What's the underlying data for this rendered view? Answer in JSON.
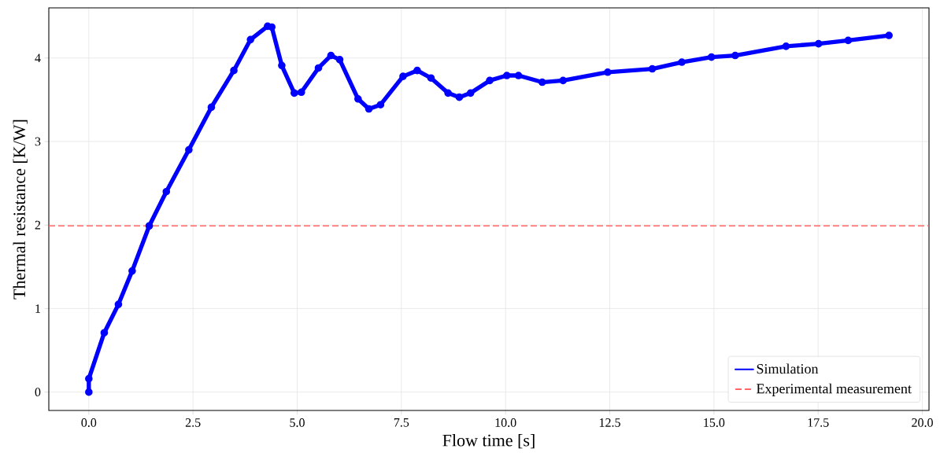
{
  "chart_data": {
    "type": "line",
    "xlabel": "Flow time [s]",
    "ylabel": "Thermal resistance [K/W]",
    "xlim": [
      -0.96,
      20.16
    ],
    "ylim": [
      -0.22,
      4.6
    ],
    "xticks": [
      {
        "value": 0,
        "label": "0.0"
      },
      2.5,
      {
        "value": 5,
        "label": "5.0"
      },
      7.5,
      {
        "value": 10,
        "label": "10.0"
      },
      12.5,
      {
        "value": 15,
        "label": "15.0"
      },
      17.5,
      {
        "value": 20,
        "label": "20.0"
      }
    ],
    "yticks": [
      0,
      1,
      2,
      3,
      4
    ],
    "grid": true,
    "legend": "bottom right",
    "marker": "circle",
    "line_style": "solid",
    "series": [
      {
        "name": "Simulation",
        "color": "#0000ff",
        "x": [
          0,
          0,
          0.37,
          0.71,
          1.04,
          1.45,
          1.86,
          2.4,
          2.94,
          3.48,
          3.88,
          4.29,
          4.39,
          4.63,
          4.93,
          5.1,
          5.51,
          5.81,
          6.02,
          6.46,
          6.72,
          7.0,
          7.54,
          7.88,
          8.21,
          8.62,
          8.89,
          9.16,
          9.62,
          10.03,
          10.31,
          10.88,
          11.38,
          12.45,
          13.52,
          14.23,
          14.94,
          15.51,
          16.73,
          17.51,
          18.22,
          19.2
        ],
        "values": [
          0,
          0.16,
          0.71,
          1.05,
          1.45,
          1.99,
          2.4,
          2.9,
          3.41,
          3.85,
          4.22,
          4.38,
          4.37,
          3.91,
          3.58,
          3.59,
          3.88,
          4.03,
          3.98,
          3.51,
          3.39,
          3.44,
          3.78,
          3.85,
          3.76,
          3.58,
          3.53,
          3.58,
          3.73,
          3.79,
          3.79,
          3.71,
          3.73,
          3.83,
          3.87,
          3.95,
          4.01,
          4.03,
          4.14,
          4.17,
          4.21,
          4.27
        ]
      }
    ],
    "ref_lines": [
      {
        "axis": "y",
        "value": 1.99,
        "label": "Experimental measurement",
        "color": "#ff6666",
        "line_style": "dashed"
      }
    ]
  }
}
